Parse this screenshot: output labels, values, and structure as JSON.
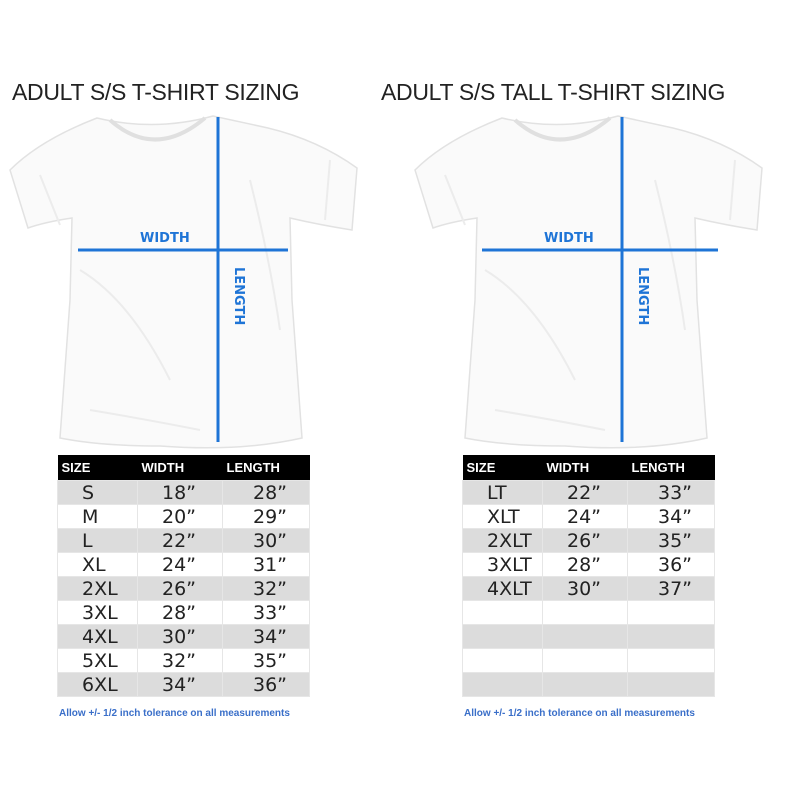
{
  "accent_color": "#1e74d6",
  "panels": [
    {
      "title": "ADULT S/S T-SHIRT SIZING",
      "width_label": "WIDTH",
      "length_label": "LENGTH",
      "headers": [
        "SIZE",
        "WIDTH",
        "LENGTH"
      ],
      "rows": [
        [
          "S",
          "18”",
          "28”"
        ],
        [
          "M",
          "20”",
          "29”"
        ],
        [
          "L",
          "22”",
          "30”"
        ],
        [
          "XL",
          "24”",
          "31”"
        ],
        [
          "2XL",
          "26”",
          "32”"
        ],
        [
          "3XL",
          "28”",
          "33”"
        ],
        [
          "4XL",
          "30”",
          "34”"
        ],
        [
          "5XL",
          "32”",
          "35”"
        ],
        [
          "6XL",
          "34”",
          "36”"
        ]
      ],
      "note": "Allow +/- 1/2 inch tolerance on all measurements"
    },
    {
      "title": "ADULT S/S TALL T-SHIRT SIZING",
      "width_label": "WIDTH",
      "length_label": "LENGTH",
      "headers": [
        "SIZE",
        "WIDTH",
        "LENGTH"
      ],
      "rows": [
        [
          "LT",
          "22”",
          "33”"
        ],
        [
          "XLT",
          "24”",
          "34”"
        ],
        [
          "2XLT",
          "26”",
          "35”"
        ],
        [
          "3XLT",
          "28”",
          "36”"
        ],
        [
          "4XLT",
          "30”",
          "37”"
        ],
        [
          "",
          "",
          ""
        ],
        [
          "",
          "",
          ""
        ],
        [
          "",
          "",
          ""
        ],
        [
          "",
          "",
          ""
        ]
      ],
      "note": "Allow +/- 1/2 inch tolerance on all measurements"
    }
  ]
}
